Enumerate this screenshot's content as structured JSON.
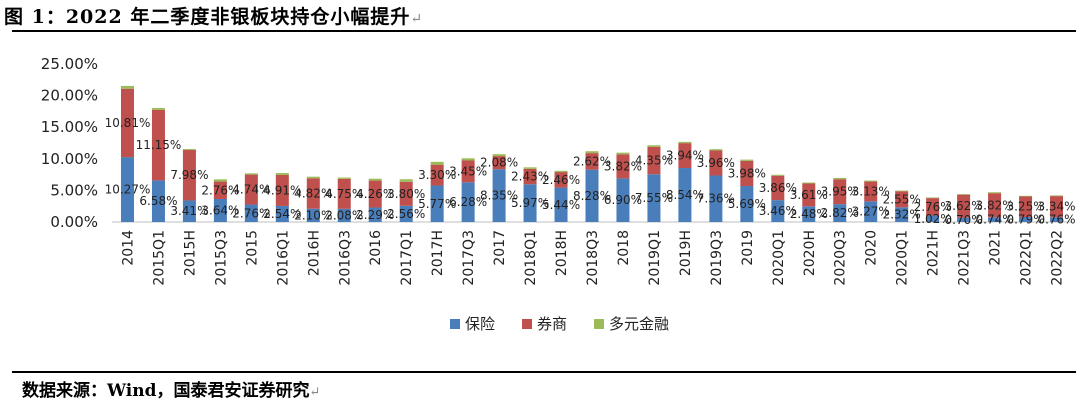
{
  "title": "图 1：2022 年二季度非银板块持仓小幅提升",
  "source": "数据来源：Wind，国泰君安证券研究",
  "chart_data": {
    "type": "bar",
    "stacked": true,
    "categories": [
      "2014",
      "2015Q1",
      "2015H",
      "2015Q3",
      "2015",
      "2016Q1",
      "2016H",
      "2016Q3",
      "2016",
      "2017Q1",
      "2017H",
      "2017Q3",
      "2017",
      "2018Q1",
      "2018H",
      "2018Q3",
      "2018",
      "2019Q1",
      "2019H",
      "2019Q3",
      "2019",
      "2020Q1",
      "2020H",
      "2020Q3",
      "2020",
      "2020Q1",
      "2021H",
      "2021Q3",
      "2021",
      "2022Q1",
      "2022Q2"
    ],
    "series": [
      {
        "name": "保险",
        "color": "#4a7ebb",
        "values": [
          10.27,
          6.58,
          3.41,
          3.64,
          2.76,
          2.54,
          2.1,
          2.08,
          2.29,
          2.56,
          5.77,
          6.28,
          8.35,
          5.97,
          5.44,
          8.28,
          6.9,
          7.55,
          8.54,
          7.36,
          5.69,
          3.46,
          2.48,
          2.82,
          3.27,
          2.32,
          1.02,
          0.7,
          0.74,
          0.79,
          0.76
        ],
        "labels": [
          "10.27%",
          "6.58%",
          "3.41%",
          "3.64%",
          "2.76%",
          "2.54%",
          "2.10%",
          "2.08%",
          "2.29%",
          "2.56%",
          "5.77%",
          "6.28%",
          "8.35%",
          "5.97%",
          "5.44%",
          "8.28%",
          "6.90%",
          "7.55%",
          "8.54%",
          "7.36%",
          "5.69%",
          "3.46%",
          "2.48%",
          "2.82%",
          "3.27%",
          "2.32%",
          "1.02%",
          "0.70%",
          "0.74%",
          "0.79%",
          "0.76%"
        ]
      },
      {
        "name": "券商",
        "color": "#c0504d",
        "values": [
          10.81,
          11.15,
          7.98,
          2.76,
          4.74,
          4.91,
          4.82,
          4.75,
          4.26,
          3.8,
          3.3,
          3.45,
          2.08,
          2.43,
          2.46,
          2.62,
          3.82,
          4.35,
          3.94,
          3.96,
          3.98,
          3.86,
          3.61,
          3.95,
          3.13,
          2.55,
          2.76,
          3.62,
          3.82,
          3.25,
          3.34
        ],
        "labels": [
          "10.81%",
          "11.15%",
          "7.98%",
          "2.76%",
          "4.74%",
          "4.91%",
          "4.82%",
          "4.75%",
          "4.26%",
          "3.80%",
          "3.30%",
          "3.45%",
          "2.08%",
          "2.43%",
          "2.46%",
          "2.62%",
          "3.82%",
          "4.35%",
          "3.94%",
          "3.96%",
          "3.98%",
          "3.86%",
          "3.61%",
          "3.95%",
          "3.13%",
          "2.55%",
          "2.76%",
          "3.62%",
          "3.82%",
          "3.25%",
          "3.34%"
        ]
      },
      {
        "name": "多元金融",
        "color": "#9bbb59",
        "values": [
          0.45,
          0.3,
          0.15,
          0.35,
          0.2,
          0.3,
          0.25,
          0.2,
          0.3,
          0.4,
          0.45,
          0.35,
          0.3,
          0.25,
          0.2,
          0.3,
          0.25,
          0.25,
          0.2,
          0.2,
          0.2,
          0.15,
          0.15,
          0.2,
          0.15,
          0.1,
          0.1,
          0.1,
          0.15,
          0.1,
          0.1
        ]
      }
    ],
    "y_ticks": [
      "0.00%",
      "5.00%",
      "10.00%",
      "15.00%",
      "20.00%",
      "25.00%"
    ],
    "ylim": [
      0,
      25
    ],
    "grid": false,
    "legend_position": "bottom"
  }
}
